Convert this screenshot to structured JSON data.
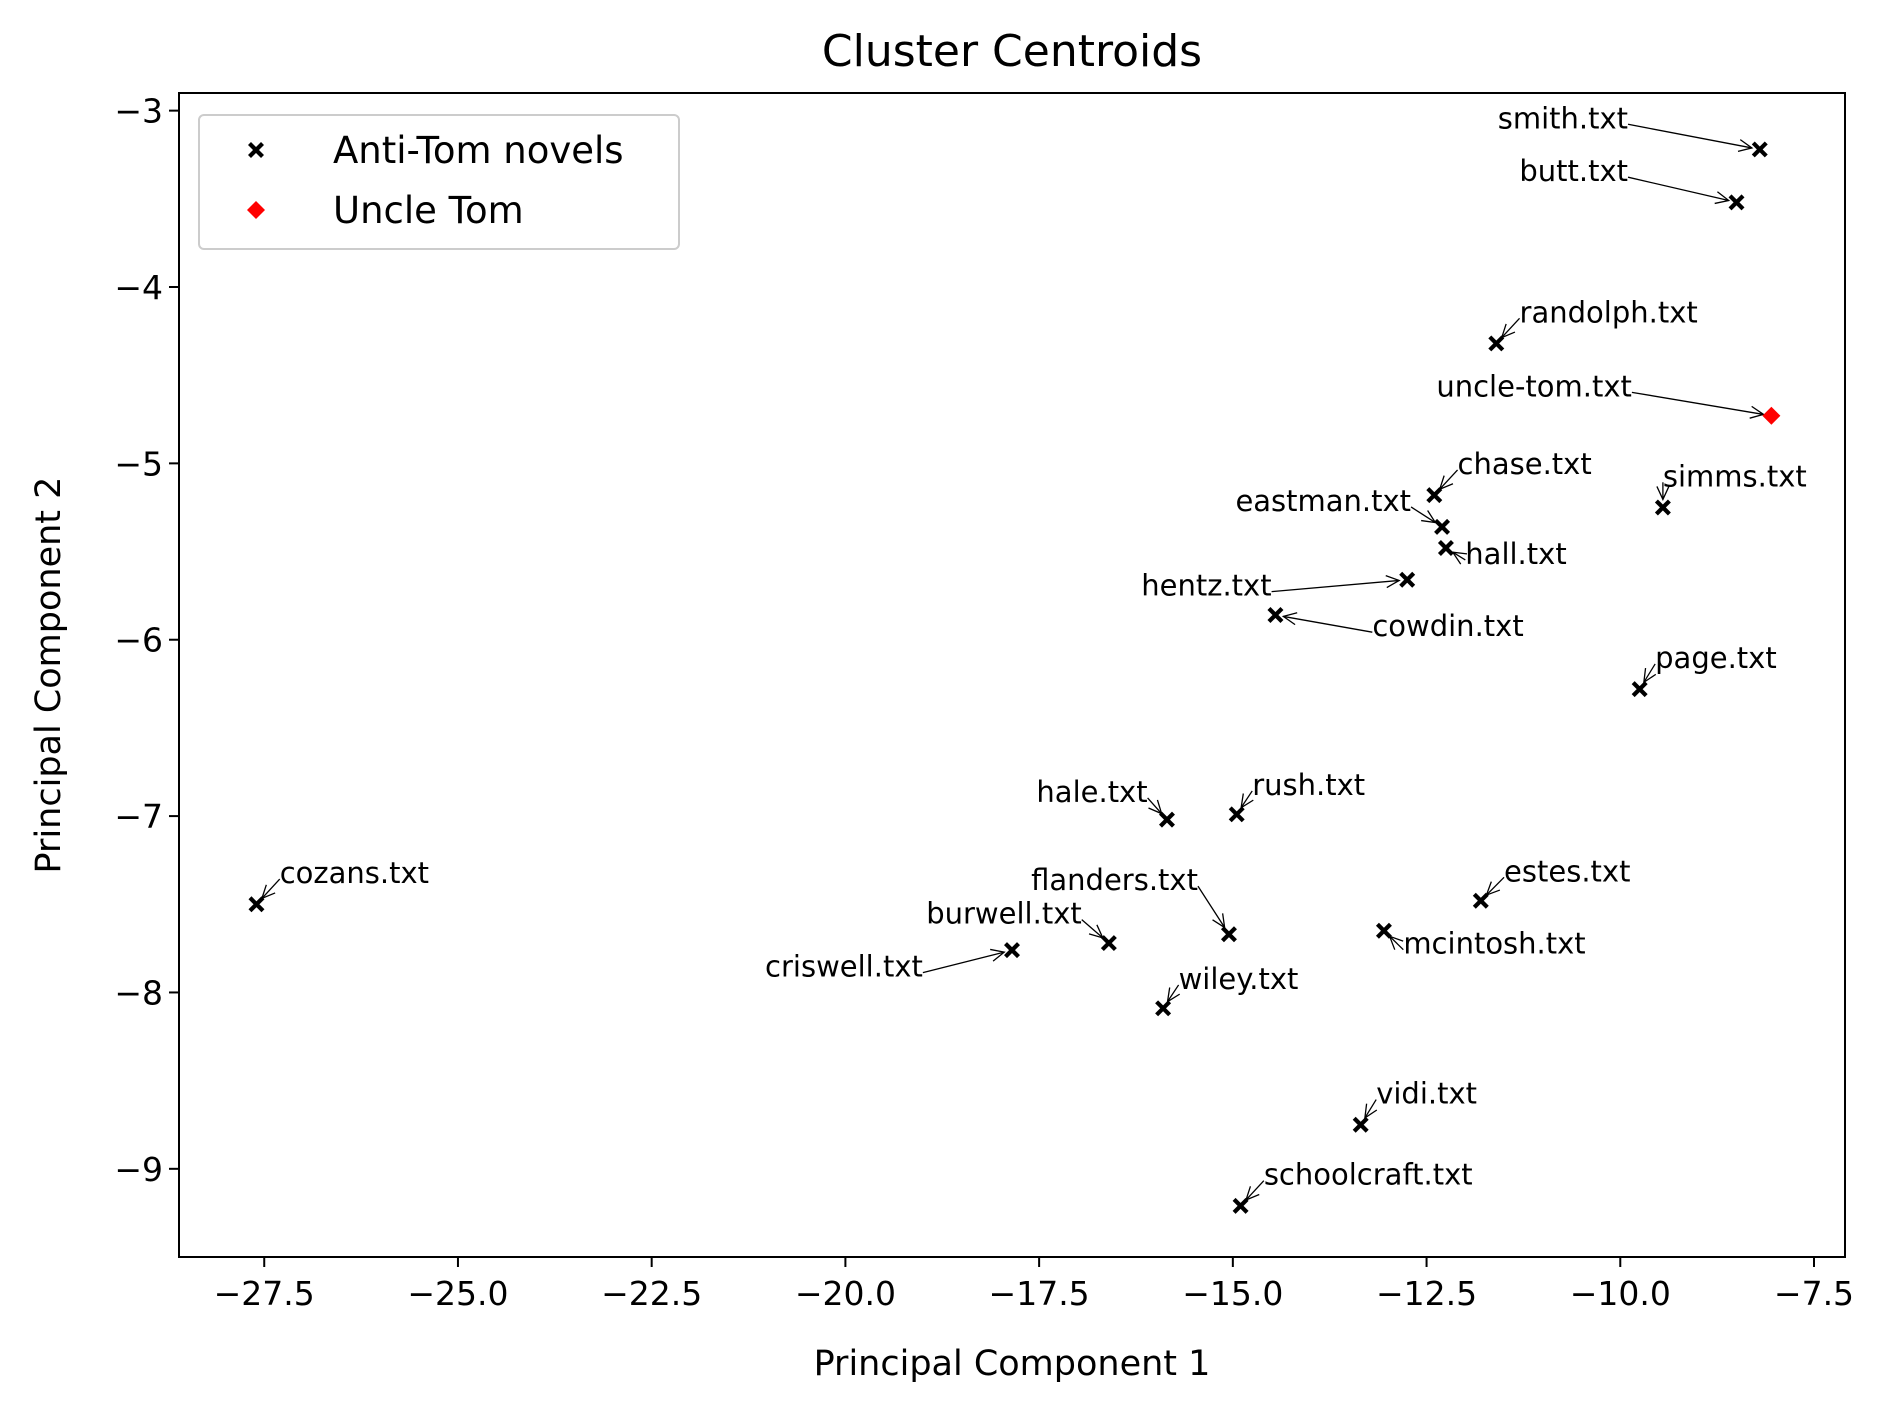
{
  "chart_data": {
    "type": "scatter",
    "title": "Cluster Centroids",
    "xlabel": "Principal Component 1",
    "ylabel": "Principal Component 2",
    "xlim": [
      -28.6,
      -7.1
    ],
    "ylim": [
      -9.5,
      -2.9
    ],
    "x_ticks": [
      -27.5,
      -25.0,
      -22.5,
      -20.0,
      -17.5,
      -15.0,
      -12.5,
      -10.0,
      -7.5
    ],
    "x_tick_labels": [
      "−27.5",
      "−25.0",
      "−22.5",
      "−20.0",
      "−17.5",
      "−15.0",
      "−12.5",
      "−10.0",
      "−7.5"
    ],
    "y_ticks": [
      -9,
      -8,
      -7,
      -6,
      -5,
      -4,
      -3
    ],
    "y_tick_labels": [
      "−9",
      "−8",
      "−7",
      "−6",
      "−5",
      "−4",
      "−3"
    ],
    "grid": false,
    "legend_position": "top-left",
    "series": [
      {
        "name": "Anti-Tom novels",
        "marker": "x",
        "color": "#000000",
        "points": [
          {
            "label": "smith.txt",
            "x": -8.2,
            "y": -3.22,
            "lx": -9.9,
            "ly": -3.1
          },
          {
            "label": "butt.txt",
            "x": -8.5,
            "y": -3.52,
            "lx": -9.9,
            "ly": -3.4
          },
          {
            "label": "randolph.txt",
            "x": -11.6,
            "y": -4.32,
            "lx": -11.3,
            "ly": -4.2
          },
          {
            "label": "chase.txt",
            "x": -12.4,
            "y": -5.18,
            "lx": -12.1,
            "ly": -5.06
          },
          {
            "label": "eastman.txt",
            "x": -12.3,
            "y": -5.36,
            "lx": -12.7,
            "ly": -5.27
          },
          {
            "label": "hall.txt",
            "x": -12.25,
            "y": -5.48,
            "lx": -12.0,
            "ly": -5.57
          },
          {
            "label": "simms.txt",
            "x": -9.45,
            "y": -5.25,
            "lx": -9.45,
            "ly": -5.13
          },
          {
            "label": "hentz.txt",
            "x": -12.75,
            "y": -5.66,
            "lx": -14.5,
            "ly": -5.75
          },
          {
            "label": "cowdin.txt",
            "x": -14.45,
            "y": -5.86,
            "lx": -13.2,
            "ly": -5.98
          },
          {
            "label": "page.txt",
            "x": -9.75,
            "y": -6.28,
            "lx": -9.55,
            "ly": -6.16
          },
          {
            "label": "hale.txt",
            "x": -15.85,
            "y": -7.02,
            "lx": -16.1,
            "ly": -6.92
          },
          {
            "label": "rush.txt",
            "x": -14.95,
            "y": -6.99,
            "lx": -14.75,
            "ly": -6.88
          },
          {
            "label": "cozans.txt",
            "x": -27.6,
            "y": -7.5,
            "lx": -27.3,
            "ly": -7.38
          },
          {
            "label": "flanders.txt",
            "x": -15.05,
            "y": -7.67,
            "lx": -15.45,
            "ly": -7.42
          },
          {
            "label": "estes.txt",
            "x": -11.8,
            "y": -7.48,
            "lx": -11.5,
            "ly": -7.37
          },
          {
            "label": "mcintosh.txt",
            "x": -13.05,
            "y": -7.65,
            "lx": -12.8,
            "ly": -7.78
          },
          {
            "label": "burwell.txt",
            "x": -16.6,
            "y": -7.72,
            "lx": -16.95,
            "ly": -7.61
          },
          {
            "label": "criswell.txt",
            "x": -17.85,
            "y": -7.76,
            "lx": -19.0,
            "ly": -7.91
          },
          {
            "label": "wiley.txt",
            "x": -15.9,
            "y": -8.09,
            "lx": -15.7,
            "ly": -7.98
          },
          {
            "label": "vidi.txt",
            "x": -13.35,
            "y": -8.75,
            "lx": -13.15,
            "ly": -8.63
          },
          {
            "label": "schoolcraft.txt",
            "x": -14.9,
            "y": -9.21,
            "lx": -14.6,
            "ly": -9.09
          }
        ]
      },
      {
        "name": "Uncle Tom",
        "marker": "diamond",
        "color": "#ff0000",
        "points": [
          {
            "label": "uncle-tom.txt",
            "x": -8.05,
            "y": -4.73,
            "lx": -9.85,
            "ly": -4.62
          }
        ]
      }
    ]
  }
}
